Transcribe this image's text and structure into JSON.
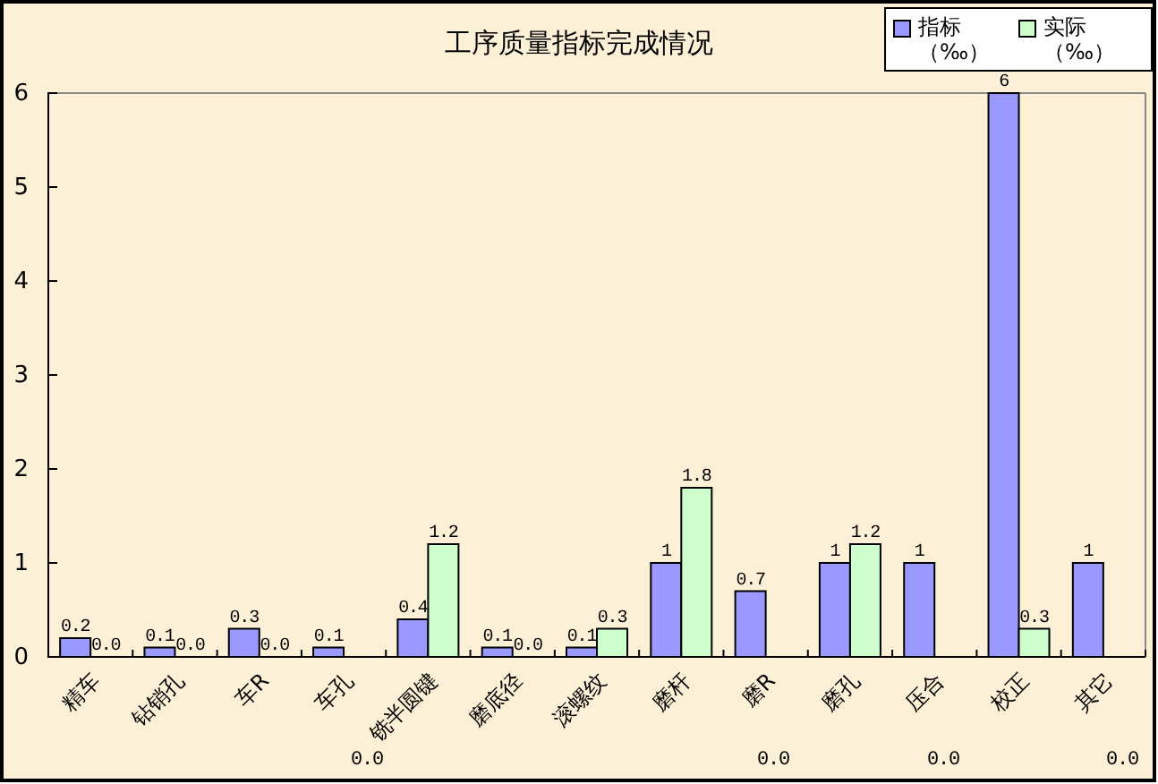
{
  "chart_data": {
    "type": "bar",
    "title": "工序质量指标完成情况",
    "categories": [
      "精车",
      "钻销孔",
      "车R",
      "车孔",
      "铣半圆键",
      "磨底径",
      "滚螺纹",
      "磨杆",
      "磨R",
      "磨孔",
      "压合",
      "校正",
      "其它"
    ],
    "series": [
      {
        "name": "指标（‰）",
        "color": "#9999ff",
        "values": [
          0.2,
          0.1,
          0.3,
          0.1,
          0.4,
          0.1,
          0.1,
          1,
          0.7,
          1,
          1,
          6,
          1
        ],
        "value_labels": [
          "0.2",
          "0.1",
          "0.3",
          "0.1",
          "0.4",
          "0.1",
          "0.1",
          "1",
          "0.7",
          "1",
          "1",
          "6",
          "1"
        ]
      },
      {
        "name": "实际（‰）",
        "color": "#ccffcc",
        "values": [
          0,
          0,
          0,
          null,
          1.2,
          0,
          0.3,
          1.8,
          null,
          1.2,
          null,
          0.3,
          null
        ],
        "value_labels": [
          "0.0",
          "0.0",
          "0.0",
          null,
          "1.2",
          "0.0",
          "0.3",
          "1.8",
          null,
          "1.2",
          null,
          "0.3",
          null
        ]
      }
    ],
    "ylim": [
      0,
      6
    ],
    "yticks": [
      0,
      1,
      2,
      3,
      4,
      5,
      6
    ],
    "legend": "top right",
    "annotations": [
      "0.0",
      "0.0",
      "0.0",
      "0.0"
    ]
  }
}
